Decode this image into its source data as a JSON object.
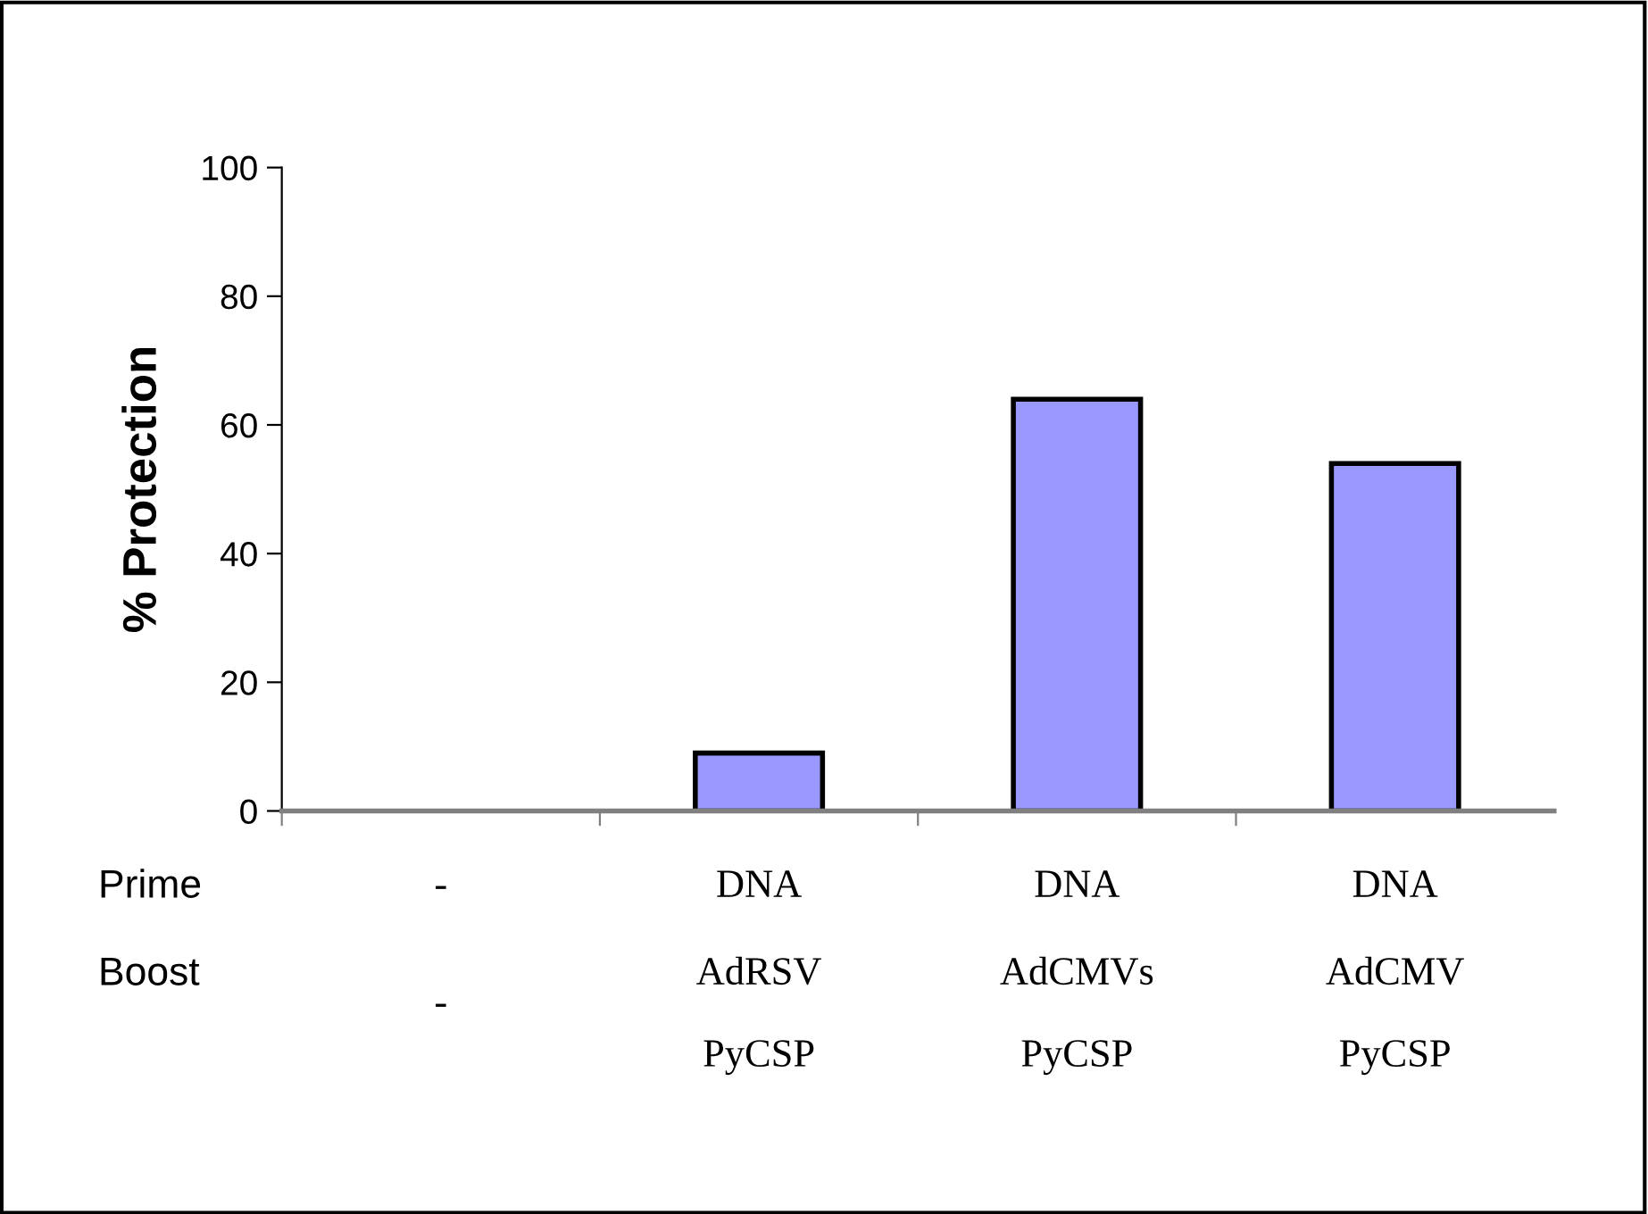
{
  "chart_data": {
    "type": "bar",
    "ylabel": "% Protection",
    "categories": [
      "-\n-",
      "DNA\nAdRSV\nPyCSP",
      "DNA\nAdCMVs\nPyCSP",
      "DNA\nAdCMV\nPyCSP"
    ],
    "values": [
      null,
      9,
      64,
      54
    ],
    "color": "#9999ff",
    "ylim": [
      0,
      100
    ],
    "yticks": [
      0,
      20,
      40,
      60,
      80,
      100
    ],
    "grid": false,
    "annotations": [
      "Prime",
      "Boost"
    ]
  }
}
